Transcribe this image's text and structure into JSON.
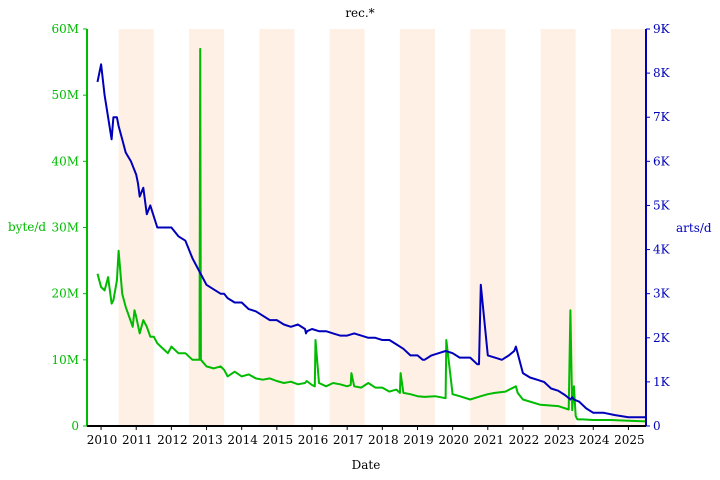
{
  "chart_data": {
    "type": "line",
    "title": "rec.*",
    "xlabel": "Date",
    "ylabel_left": "byte/d",
    "ylabel_right": "arts/d",
    "xlim": [
      2009.6,
      2025.5
    ],
    "ylim_left": [
      0,
      60000000
    ],
    "ylim_right": [
      0,
      9000
    ],
    "colors": {
      "bytes": "#00bb00",
      "arts": "#0000bb",
      "band": "#fff0e6"
    },
    "x_ticks": [
      {
        "x": 2010.0,
        "label": "2010"
      },
      {
        "x": 2011.0,
        "label": "2011"
      },
      {
        "x": 2012.0,
        "label": "2012"
      },
      {
        "x": 2013.0,
        "label": "2013"
      },
      {
        "x": 2014.0,
        "label": "2014"
      },
      {
        "x": 2015.0,
        "label": "2015"
      },
      {
        "x": 2016.0,
        "label": "2016"
      },
      {
        "x": 2017.0,
        "label": "2017"
      },
      {
        "x": 2018.0,
        "label": "2018"
      },
      {
        "x": 2019.0,
        "label": "2019"
      },
      {
        "x": 2020.0,
        "label": "2020"
      },
      {
        "x": 2021.0,
        "label": "2021"
      },
      {
        "x": 2022.0,
        "label": "2022"
      },
      {
        "x": 2023.0,
        "label": "2023"
      },
      {
        "x": 2024.0,
        "label": "2024"
      },
      {
        "x": 2025.0,
        "label": "2025"
      }
    ],
    "y_ticks_left": [
      {
        "v": 0,
        "label": "0"
      },
      {
        "v": 10000000,
        "label": "10M"
      },
      {
        "v": 20000000,
        "label": "20M"
      },
      {
        "v": 30000000,
        "label": "30M"
      },
      {
        "v": 40000000,
        "label": "40M"
      },
      {
        "v": 50000000,
        "label": "50M"
      },
      {
        "v": 60000000,
        "label": "60M"
      }
    ],
    "y_ticks_right": [
      {
        "v": 0,
        "label": "0"
      },
      {
        "v": 1000,
        "label": "1K"
      },
      {
        "v": 2000,
        "label": "2K"
      },
      {
        "v": 3000,
        "label": "3K"
      },
      {
        "v": 4000,
        "label": "4K"
      },
      {
        "v": 5000,
        "label": "5K"
      },
      {
        "v": 6000,
        "label": "6K"
      },
      {
        "v": 7000,
        "label": "7K"
      },
      {
        "v": 8000,
        "label": "8K"
      },
      {
        "v": 9000,
        "label": "9K"
      }
    ],
    "bands": [
      {
        "from": 2010.5,
        "to": 2011.5
      },
      {
        "from": 2012.5,
        "to": 2013.5
      },
      {
        "from": 2014.5,
        "to": 2015.5
      },
      {
        "from": 2016.5,
        "to": 2017.5
      },
      {
        "from": 2018.5,
        "to": 2019.5
      },
      {
        "from": 2020.5,
        "to": 2021.5
      },
      {
        "from": 2022.5,
        "to": 2023.5
      },
      {
        "from": 2024.5,
        "to": 2025.5
      }
    ],
    "series": [
      {
        "key": "bytes",
        "axis": "left",
        "x": [
          2009.9,
          2010.0,
          2010.1,
          2010.2,
          2010.3,
          2010.35,
          2010.45,
          2010.5,
          2010.6,
          2010.7,
          2010.8,
          2010.9,
          2010.95,
          2011.0,
          2011.1,
          2011.2,
          2011.3,
          2011.4,
          2011.5,
          2011.6,
          2011.7,
          2011.8,
          2011.9,
          2012.0,
          2012.2,
          2012.4,
          2012.6,
          2012.8,
          2012.82,
          2012.84,
          2013.0,
          2013.2,
          2013.4,
          2013.5,
          2013.6,
          2013.8,
          2014.0,
          2014.2,
          2014.4,
          2014.6,
          2014.8,
          2015.0,
          2015.2,
          2015.4,
          2015.6,
          2015.8,
          2015.85,
          2016.0,
          2016.08,
          2016.1,
          2016.2,
          2016.4,
          2016.6,
          2016.8,
          2017.0,
          2017.1,
          2017.12,
          2017.2,
          2017.4,
          2017.6,
          2017.8,
          2018.0,
          2018.2,
          2018.4,
          2018.5,
          2018.52,
          2018.6,
          2018.8,
          2019.0,
          2019.2,
          2019.5,
          2019.8,
          2019.82,
          2020.0,
          2020.2,
          2020.5,
          2020.8,
          2021.0,
          2021.2,
          2021.5,
          2021.8,
          2021.85,
          2022.0,
          2022.5,
          2023.0,
          2023.3,
          2023.35,
          2023.4,
          2023.45,
          2023.5,
          2023.55,
          2023.7,
          2024.0,
          2024.5,
          2025.0,
          2025.5
        ],
        "y": [
          23000000,
          21000000,
          20500000,
          22500000,
          18500000,
          19000000,
          22000000,
          26500000,
          20000000,
          18000000,
          16500000,
          15000000,
          17500000,
          16500000,
          14000000,
          16000000,
          15000000,
          13500000,
          13500000,
          12500000,
          12000000,
          11500000,
          11000000,
          12000000,
          11000000,
          11000000,
          10000000,
          10000000,
          57000000,
          10000000,
          9000000,
          8700000,
          9000000,
          8500000,
          7500000,
          8200000,
          7500000,
          7800000,
          7200000,
          7000000,
          7200000,
          6800000,
          6500000,
          6700000,
          6300000,
          6500000,
          6800000,
          6200000,
          6000000,
          13000000,
          6500000,
          6000000,
          6500000,
          6300000,
          6000000,
          6200000,
          8000000,
          6000000,
          5800000,
          6500000,
          5800000,
          5800000,
          5200000,
          5500000,
          5000000,
          8000000,
          5000000,
          4800000,
          4500000,
          4400000,
          4500000,
          4200000,
          13000000,
          4800000,
          4500000,
          4000000,
          4500000,
          4800000,
          5000000,
          5200000,
          6000000,
          5000000,
          4000000,
          3200000,
          3000000,
          2500000,
          17500000,
          2400000,
          6000000,
          1500000,
          1000000,
          1000000,
          900000,
          900000,
          800000,
          700000
        ]
      },
      {
        "key": "arts",
        "axis": "right",
        "x": [
          2009.9,
          2010.0,
          2010.1,
          2010.2,
          2010.3,
          2010.35,
          2010.45,
          2010.5,
          2010.6,
          2010.7,
          2010.85,
          2011.0,
          2011.05,
          2011.1,
          2011.2,
          2011.3,
          2011.4,
          2011.6,
          2011.8,
          2012.0,
          2012.2,
          2012.4,
          2012.6,
          2012.8,
          2013.0,
          2013.2,
          2013.4,
          2013.5,
          2013.6,
          2013.8,
          2014.0,
          2014.2,
          2014.4,
          2014.6,
          2014.8,
          2015.0,
          2015.2,
          2015.4,
          2015.6,
          2015.8,
          2015.83,
          2015.86,
          2016.0,
          2016.2,
          2016.4,
          2016.6,
          2016.8,
          2017.0,
          2017.2,
          2017.4,
          2017.6,
          2017.8,
          2018.0,
          2018.2,
          2018.4,
          2018.6,
          2018.8,
          2019.0,
          2019.15,
          2019.17,
          2019.2,
          2019.4,
          2019.6,
          2019.8,
          2020.0,
          2020.2,
          2020.5,
          2020.7,
          2020.75,
          2020.8,
          2021.0,
          2021.2,
          2021.4,
          2021.6,
          2021.75,
          2021.8,
          2022.0,
          2022.2,
          2022.4,
          2022.6,
          2022.8,
          2023.0,
          2023.2,
          2023.35,
          2023.4,
          2023.45,
          2023.6,
          2023.8,
          2024.0,
          2024.3,
          2024.6,
          2025.0,
          2025.5
        ],
        "y": [
          7800,
          8200,
          7500,
          7000,
          6500,
          7000,
          7000,
          6800,
          6500,
          6200,
          6000,
          5700,
          5500,
          5200,
          5400,
          4800,
          5000,
          4500,
          4500,
          4500,
          4300,
          4200,
          3800,
          3500,
          3200,
          3100,
          3000,
          3000,
          2900,
          2800,
          2800,
          2650,
          2600,
          2500,
          2400,
          2400,
          2300,
          2250,
          2300,
          2200,
          2100,
          2150,
          2200,
          2150,
          2150,
          2100,
          2050,
          2050,
          2100,
          2050,
          2000,
          2000,
          1950,
          1950,
          1850,
          1750,
          1600,
          1600,
          1500,
          1500,
          1500,
          1600,
          1650,
          1700,
          1650,
          1550,
          1550,
          1400,
          1400,
          3200,
          1600,
          1550,
          1500,
          1600,
          1700,
          1800,
          1200,
          1100,
          1050,
          1000,
          850,
          800,
          700,
          600,
          650,
          600,
          550,
          400,
          300,
          300,
          250,
          200,
          200
        ]
      }
    ]
  }
}
